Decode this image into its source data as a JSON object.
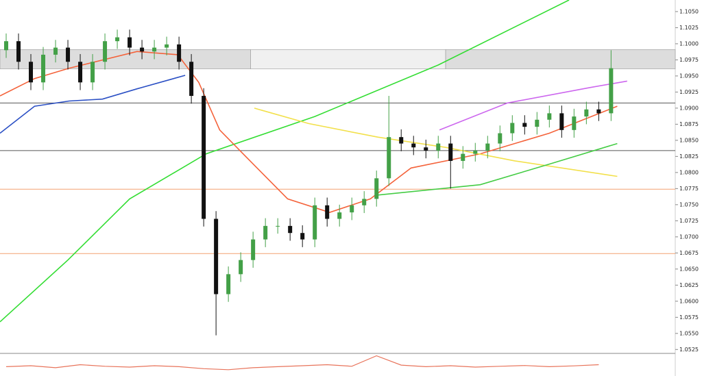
{
  "chart_data": {
    "type": "candlestick",
    "ylim": [
      1.052,
      1.1068
    ],
    "xlim": [
      -0.5,
      54.2
    ],
    "yticks": [
      {
        "value": 1.105,
        "label": "1.1050"
      },
      {
        "value": 1.1025,
        "label": "1.1025"
      },
      {
        "value": 1.1,
        "label": "1.1000"
      },
      {
        "value": 1.0975,
        "label": "1.0975"
      },
      {
        "value": 1.095,
        "label": "1.0950"
      },
      {
        "value": 1.0925,
        "label": "1.0925"
      },
      {
        "value": 1.09,
        "label": "1.0900"
      },
      {
        "value": 1.0875,
        "label": "1.0875"
      },
      {
        "value": 1.085,
        "label": "1.0850"
      },
      {
        "value": 1.0825,
        "label": "1.0825"
      },
      {
        "value": 1.08,
        "label": "1.0800"
      },
      {
        "value": 1.0775,
        "label": "1.0775"
      },
      {
        "value": 1.075,
        "label": "1.0750"
      },
      {
        "value": 1.0725,
        "label": "1.0725"
      },
      {
        "value": 1.07,
        "label": "1.0700"
      },
      {
        "value": 1.0675,
        "label": "1.0675"
      },
      {
        "value": 1.065,
        "label": "1.0650"
      },
      {
        "value": 1.0625,
        "label": "1.0625"
      },
      {
        "value": 1.06,
        "label": "1.0600"
      },
      {
        "value": 1.0575,
        "label": "1.0575"
      },
      {
        "value": 1.055,
        "label": "1.0550"
      },
      {
        "value": 1.0525,
        "label": "1.0525"
      }
    ],
    "up_color": "#43a047",
    "down_color": "#111111",
    "open": [
      1.099,
      1.1004,
      1.0972,
      1.094,
      1.0983,
      1.0994,
      1.0972,
      1.094,
      1.0972,
      1.1004,
      1.101,
      1.0994,
      1.0988,
      1.0994,
      1.0999,
      1.0972,
      1.0919,
      1.0728,
      1.0611,
      1.0642,
      1.0664,
      1.0696,
      1.0717,
      1.0717,
      1.0706,
      1.0696,
      1.0749,
      1.0728,
      1.0738,
      1.0749,
      1.0759,
      1.0791,
      1.0855,
      1.0845,
      1.0839,
      1.0834,
      1.0845,
      1.0818,
      1.0829,
      1.0834,
      1.0845,
      1.0861,
      1.0877,
      1.0871,
      1.0882,
      1.0892,
      1.0866,
      1.0887,
      1.0898,
      1.0892
    ],
    "high": [
      1.1016,
      1.1016,
      1.0984,
      1.0995,
      1.1006,
      1.1006,
      1.0984,
      1.0984,
      1.1016,
      1.1022,
      1.1022,
      1.1006,
      1.1006,
      1.1011,
      1.1011,
      1.0984,
      1.0931,
      1.074,
      1.0654,
      1.0676,
      1.0708,
      1.0729,
      1.0729,
      1.0729,
      1.0718,
      1.0761,
      1.0761,
      1.075,
      1.0761,
      1.0771,
      1.0803,
      1.0919,
      1.0867,
      1.0857,
      1.0851,
      1.0857,
      1.0857,
      1.0841,
      1.0846,
      1.0857,
      1.0873,
      1.0889,
      1.0889,
      1.0894,
      1.0904,
      1.0904,
      1.0899,
      1.091,
      1.091,
      1.099
    ],
    "low": [
      1.0978,
      1.096,
      1.0928,
      1.0928,
      1.0971,
      1.096,
      1.0928,
      1.0928,
      1.096,
      1.0992,
      1.0982,
      1.0976,
      1.0976,
      1.0982,
      1.096,
      1.0907,
      1.0716,
      1.0547,
      1.0599,
      1.063,
      1.0652,
      1.0684,
      1.0705,
      1.0694,
      1.0684,
      1.0684,
      1.0716,
      1.0716,
      1.0726,
      1.0737,
      1.0747,
      1.0779,
      1.0833,
      1.0827,
      1.0822,
      1.0822,
      1.0775,
      1.0806,
      1.0817,
      1.0822,
      1.0833,
      1.0849,
      1.0859,
      1.0859,
      1.087,
      1.0854,
      1.0854,
      1.0875,
      1.088,
      1.088
    ],
    "close": [
      1.1004,
      1.0972,
      1.094,
      1.0983,
      1.0994,
      1.0972,
      1.094,
      1.0972,
      1.1004,
      1.101,
      1.0994,
      1.0988,
      1.0994,
      1.0999,
      1.0972,
      1.0919,
      1.0728,
      1.0611,
      1.0642,
      1.0664,
      1.0696,
      1.0717,
      1.0717,
      1.0706,
      1.0696,
      1.0749,
      1.0728,
      1.0738,
      1.0749,
      1.0759,
      1.0791,
      1.0855,
      1.0845,
      1.0839,
      1.0834,
      1.0845,
      1.0818,
      1.0829,
      1.0834,
      1.0845,
      1.0861,
      1.0877,
      1.0871,
      1.0882,
      1.0892,
      1.0866,
      1.0887,
      1.0898,
      1.0892,
      1.0962
    ],
    "overlays": [
      {
        "color": "#33dd33",
        "x": [
          -0.5,
          5,
          10,
          16.2,
          25,
          35,
          45.6
        ],
        "values": [
          1.0568,
          1.0664,
          1.0759,
          1.0829,
          1.0887,
          1.0967,
          1.1068
        ]
      },
      {
        "color": "#f4623a",
        "x": [
          -0.5,
          2.3,
          5.1,
          10.6,
          13.9,
          15.6,
          17.3,
          19.5,
          22.8,
          26.2,
          29.5,
          32.8,
          38.4,
          44,
          49.5
        ],
        "values": [
          1.0919,
          1.0946,
          1.0962,
          1.0988,
          1.0983,
          1.094,
          1.0866,
          1.0823,
          1.0759,
          1.0738,
          1.0759,
          1.0807,
          1.0829,
          1.0861,
          1.0903
        ]
      },
      {
        "color": "#2a4fc4",
        "x": [
          -0.5,
          2.3,
          5.1,
          7.8,
          10.6,
          14.5
        ],
        "values": [
          1.0861,
          1.0903,
          1.0911,
          1.0914,
          1.093,
          1.0951
        ]
      },
      {
        "color": "#f2e04a",
        "x": [
          20.1,
          24.5,
          30.1,
          35.6,
          41.2,
          49.5
        ],
        "values": [
          1.09,
          1.0876,
          1.0855,
          1.0839,
          1.0818,
          1.0794
        ]
      },
      {
        "color": "#cc66ee",
        "x": [
          35.1,
          40.6,
          47.3,
          50.3
        ],
        "values": [
          1.0866,
          1.0908,
          1.0932,
          1.0942
        ]
      },
      {
        "color": "#44cc44",
        "x": [
          30.1,
          38.4,
          44,
          49.5
        ],
        "values": [
          1.0765,
          1.0781,
          1.0813,
          1.0845
        ]
      }
    ],
    "levels": [
      {
        "value": 1.0908,
        "color": "#555555"
      },
      {
        "value": 1.0834,
        "color": "#555555"
      },
      {
        "value": 1.0774,
        "color": "#f4a070"
      },
      {
        "value": 1.0674,
        "color": "#f4a070"
      }
    ],
    "zones": [
      {
        "x": [
          -0.5,
          19.8
        ],
        "range": [
          1.0961,
          1.0991
        ],
        "color": "#dddddd"
      },
      {
        "x": [
          19.8,
          35.6
        ],
        "range": [
          1.0961,
          1.0991
        ],
        "color": "#f0f0f0"
      },
      {
        "x": [
          35.6,
          54.2
        ],
        "range": [
          1.0961,
          1.0991
        ],
        "color": "#dddddd"
      }
    ],
    "indicator": {
      "color": "#e8735a",
      "ylim": [
        0,
        100
      ],
      "x": [
        0,
        2,
        4,
        6,
        8,
        10,
        12,
        14,
        16,
        18,
        20,
        22,
        24,
        26,
        28,
        30,
        32,
        34,
        36,
        38,
        40,
        42,
        44,
        46,
        48
      ],
      "values": [
        40,
        45,
        35,
        50,
        42,
        38,
        45,
        40,
        30,
        25,
        35,
        40,
        45,
        50,
        42,
        95,
        48,
        40,
        45,
        38,
        42,
        46,
        40,
        44,
        50
      ]
    }
  }
}
